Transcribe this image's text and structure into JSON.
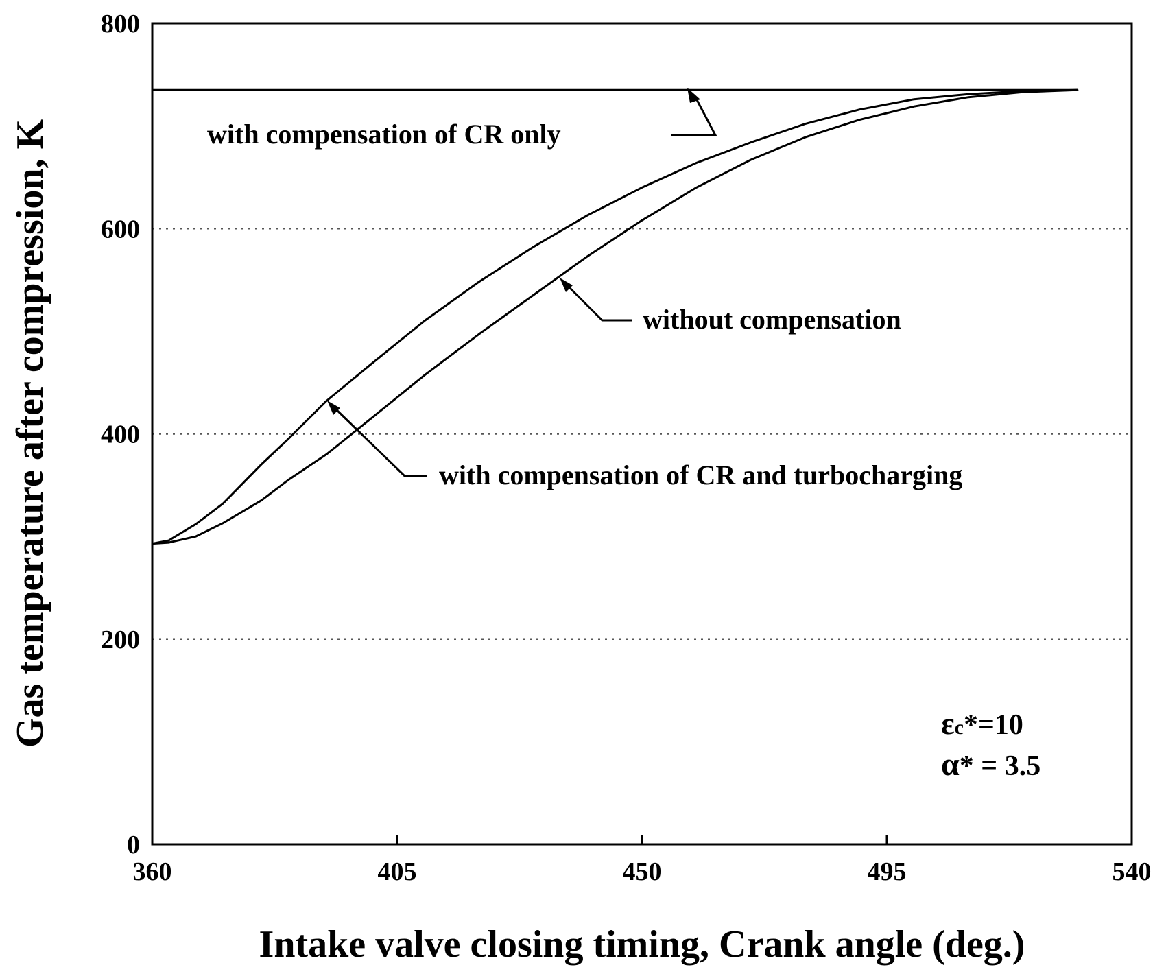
{
  "chart_data": {
    "type": "line",
    "title": "",
    "xlabel": "Intake valve closing timing, Crank angle (deg.)",
    "ylabel": "Gas temperature after compression, K",
    "xlim": [
      360,
      540
    ],
    "ylim": [
      0,
      800
    ],
    "xticks": [
      "360",
      "405",
      "450",
      "495",
      "540"
    ],
    "yticks": [
      "0",
      "200",
      "400",
      "600",
      "800"
    ],
    "grid": "horizontal dotted at 200, 400, 600",
    "series": [
      {
        "name": "with compensation of CR only",
        "x": [
          360,
          530
        ],
        "y": [
          735,
          735
        ]
      },
      {
        "name": "with compensation of CR and turbocharging",
        "x": [
          360,
          363,
          368,
          373,
          380,
          385,
          392,
          400,
          410,
          420,
          430,
          440,
          450,
          460,
          470,
          480,
          490,
          500,
          510,
          520,
          530
        ],
        "y": [
          293,
          296,
          312,
          332,
          370,
          395,
          432,
          467,
          510,
          548,
          582,
          613,
          640,
          664,
          684,
          702,
          716,
          726,
          731,
          734,
          735
        ]
      },
      {
        "name": "without compensation",
        "x": [
          360,
          363,
          368,
          373,
          380,
          385,
          392,
          400,
          410,
          420,
          430,
          440,
          450,
          460,
          470,
          480,
          490,
          500,
          510,
          520,
          530
        ],
        "y": [
          293,
          294,
          300,
          313,
          335,
          355,
          380,
          414,
          457,
          497,
          535,
          573,
          608,
          640,
          667,
          689,
          706,
          719,
          728,
          733,
          735
        ]
      }
    ],
    "annotations": [
      {
        "text": "with compensation of CR only"
      },
      {
        "text": "without compensation"
      },
      {
        "text": "with compensation of CR and turbocharging"
      }
    ],
    "parameters": {
      "epsilon_symbol": "ε",
      "epsilon_sub": "c",
      "epsilon_value": "*=10",
      "alpha_symbol": "α",
      "alpha_value": "* = 3.5"
    }
  }
}
